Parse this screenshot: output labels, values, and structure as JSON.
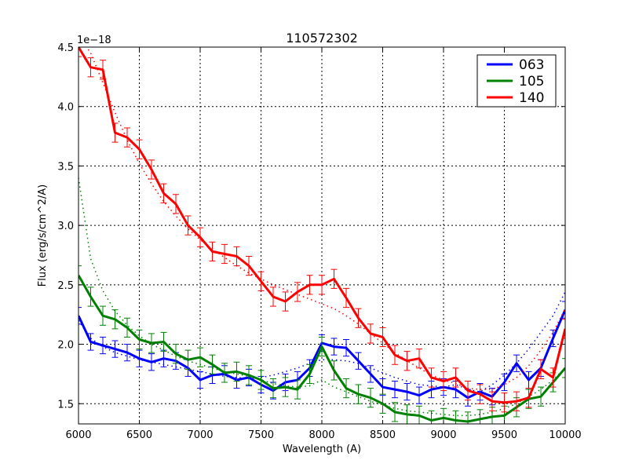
{
  "chart_data": {
    "type": "line",
    "title": "110572302",
    "xlabel": "Wavelength (A)",
    "ylabel": "Flux (erg/s/cm^2/A)",
    "y_offset_label": "1e−18",
    "xlim": [
      6000,
      10000
    ],
    "ylim": [
      1.33,
      4.5
    ],
    "xticks": [
      6000,
      6500,
      7000,
      7500,
      8000,
      8500,
      9000,
      9500,
      10000
    ],
    "yticks": [
      1.5,
      2.0,
      2.5,
      3.0,
      3.5,
      4.0,
      4.5
    ],
    "ytick_labels": [
      "1.5",
      "2.0",
      "2.5",
      "3.0",
      "3.5",
      "4.0",
      "4.5"
    ],
    "grid": true,
    "legend_position": "upper right",
    "x": [
      6000,
      6100,
      6200,
      6300,
      6400,
      6500,
      6600,
      6700,
      6800,
      6900,
      7000,
      7100,
      7200,
      7300,
      7400,
      7500,
      7600,
      7700,
      7800,
      7900,
      8000,
      8100,
      8200,
      8300,
      8400,
      8500,
      8600,
      8700,
      8800,
      8900,
      9000,
      9100,
      9200,
      9300,
      9400,
      9500,
      9600,
      9700,
      9800,
      9900,
      10000
    ],
    "series": [
      {
        "name": "063",
        "color": "#0000ff",
        "values": [
          2.24,
          2.02,
          1.99,
          1.96,
          1.93,
          1.88,
          1.85,
          1.88,
          1.86,
          1.8,
          1.7,
          1.74,
          1.75,
          1.7,
          1.72,
          1.66,
          1.61,
          1.68,
          1.7,
          1.8,
          2.01,
          1.98,
          1.97,
          1.86,
          1.75,
          1.64,
          1.62,
          1.6,
          1.57,
          1.62,
          1.64,
          1.62,
          1.55,
          1.6,
          1.56,
          1.68,
          1.84,
          1.7,
          1.8,
          2.05,
          2.29
        ],
        "errors": 0.07,
        "model": [
          2.2,
          2.05,
          1.98,
          1.93,
          1.9,
          1.87,
          1.85,
          1.83,
          1.81,
          1.79,
          1.77,
          1.75,
          1.73,
          1.72,
          1.71,
          1.72,
          1.74,
          1.77,
          1.8,
          1.84,
          1.87,
          1.87,
          1.86,
          1.84,
          1.8,
          1.76,
          1.72,
          1.69,
          1.66,
          1.65,
          1.64,
          1.66,
          1.62,
          1.6,
          1.66,
          1.74,
          1.84,
          1.96,
          2.1,
          2.24,
          2.44
        ]
      },
      {
        "name": "105",
        "color": "#008000",
        "values": [
          2.58,
          2.4,
          2.24,
          2.21,
          2.14,
          2.04,
          2.01,
          2.02,
          1.92,
          1.87,
          1.89,
          1.83,
          1.76,
          1.77,
          1.74,
          1.7,
          1.63,
          1.64,
          1.62,
          1.75,
          1.98,
          1.78,
          1.63,
          1.58,
          1.55,
          1.5,
          1.43,
          1.41,
          1.4,
          1.36,
          1.38,
          1.36,
          1.35,
          1.37,
          1.39,
          1.4,
          1.47,
          1.54,
          1.56,
          1.68,
          1.8
        ],
        "errors": 0.08,
        "model": [
          3.4,
          2.72,
          2.45,
          2.28,
          2.16,
          2.07,
          2.0,
          1.95,
          1.9,
          1.86,
          1.83,
          1.8,
          1.77,
          1.75,
          1.73,
          1.7,
          1.67,
          1.65,
          1.64,
          1.65,
          1.7,
          1.64,
          1.6,
          1.56,
          1.52,
          1.49,
          1.46,
          1.44,
          1.43,
          1.42,
          1.41,
          1.4,
          1.4,
          1.41,
          1.43,
          1.46,
          1.5,
          1.56,
          1.62,
          1.7,
          1.8
        ]
      },
      {
        "name": "140",
        "color": "#ff0000",
        "values": [
          4.5,
          4.33,
          4.31,
          3.78,
          3.74,
          3.64,
          3.47,
          3.27,
          3.18,
          3.0,
          2.9,
          2.78,
          2.76,
          2.74,
          2.66,
          2.53,
          2.4,
          2.36,
          2.44,
          2.5,
          2.5,
          2.55,
          2.39,
          2.22,
          2.09,
          2.06,
          1.91,
          1.86,
          1.88,
          1.72,
          1.69,
          1.72,
          1.61,
          1.58,
          1.52,
          1.51,
          1.52,
          1.55,
          1.79,
          1.72,
          2.13
        ],
        "errors": 0.08,
        "model": [
          4.6,
          4.45,
          4.2,
          3.95,
          3.72,
          3.52,
          3.35,
          3.2,
          3.08,
          2.97,
          2.88,
          2.8,
          2.73,
          2.66,
          2.6,
          2.55,
          2.5,
          2.46,
          2.42,
          2.38,
          2.34,
          2.3,
          2.24,
          2.17,
          2.09,
          2.01,
          1.93,
          1.86,
          1.8,
          1.74,
          1.7,
          1.67,
          1.63,
          1.62,
          1.62,
          1.66,
          1.72,
          1.82,
          1.95,
          2.1,
          2.3
        ]
      }
    ]
  },
  "legend": [
    {
      "label": "063",
      "color": "#0000ff"
    },
    {
      "label": "105",
      "color": "#008000"
    },
    {
      "label": "140",
      "color": "#ff0000"
    }
  ]
}
